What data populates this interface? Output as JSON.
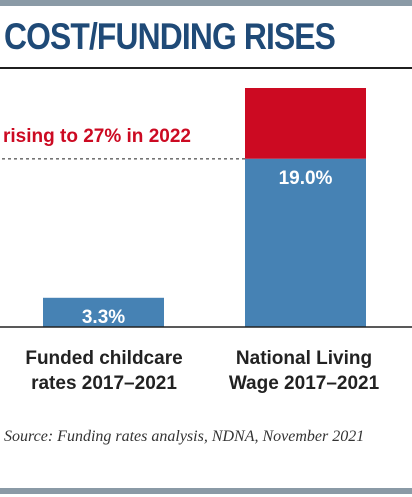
{
  "title": "COST/FUNDING RISES",
  "source": "Source: Funding rates analysis, NDNA, November 2021",
  "colors": {
    "bar": "#4682b4",
    "increase": "#cc0a22",
    "title": "#1f4a77",
    "annotation": "#cc0a22"
  },
  "chart_data": {
    "type": "bar",
    "title": "COST/FUNDING RISES",
    "categories": [
      "Funded childcare rates 2017–2021",
      "National Living Wage 2017–2021"
    ],
    "category_lines": [
      [
        "Funded childcare",
        "rates 2017–2021"
      ],
      [
        "National Living",
        "Wage 2017–2021"
      ]
    ],
    "values": [
      3.3,
      19.0
    ],
    "value_labels": [
      "3.3%",
      "19.0%"
    ],
    "projection": {
      "category_index": 1,
      "value": 27,
      "label": "rising to 27% in 2022"
    },
    "ylim": [
      0,
      27
    ],
    "grid": false,
    "legend": "none"
  }
}
